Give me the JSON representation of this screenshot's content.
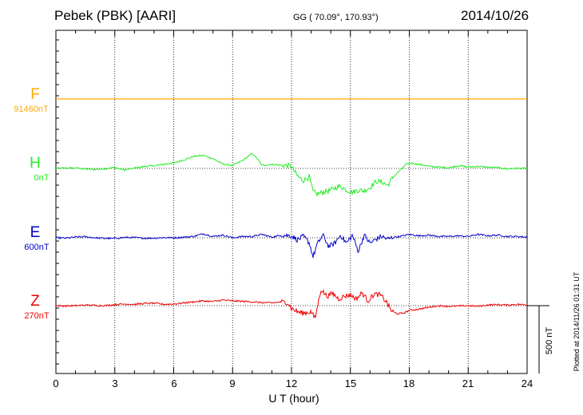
{
  "chart_data": {
    "type": "line",
    "station": "Pebek (PBK)  [AARI]",
    "coords": "GG ( 70.09°, 170.93°)",
    "date": "2014/10/26",
    "xlabel": "U T (hour)",
    "xlim": [
      0,
      24
    ],
    "xticks": [
      "0",
      "3",
      "6",
      "9",
      "12",
      "15",
      "18",
      "21",
      "24"
    ],
    "scale_label": "500 nT",
    "scale_nT": 500,
    "plotted_note": "Plotted at 2014/11/26 01:31  UT",
    "series": [
      {
        "name": "F",
        "baseline": "91460nT",
        "color": "#ffaa00",
        "x": [
          0,
          24
        ],
        "y": [
          0,
          0
        ]
      },
      {
        "name": "H",
        "baseline": "0nT",
        "color": "#22ee22",
        "x": [
          0,
          0.5,
          1,
          1.5,
          2,
          2.5,
          3,
          3.5,
          4,
          4.5,
          5,
          5.5,
          6,
          6.5,
          7,
          7.5,
          8,
          8.5,
          9,
          9.5,
          10,
          10.25,
          10.5,
          11,
          11.5,
          11.8,
          12,
          12.3,
          12.6,
          12.9,
          13.1,
          13.3,
          13.6,
          13.9,
          14.2,
          14.5,
          14.8,
          15.1,
          15.4,
          15.7,
          16,
          16.3,
          16.6,
          16.9,
          17.2,
          17.5,
          17.8,
          18,
          18.5,
          19,
          19.5,
          20,
          20.5,
          21,
          21.5,
          22,
          22.5,
          23,
          23.5,
          24
        ],
        "y": [
          0,
          2,
          3,
          -5,
          -8,
          -2,
          6,
          -12,
          2,
          14,
          20,
          30,
          40,
          62,
          88,
          96,
          72,
          32,
          22,
          58,
          110,
          72,
          22,
          30,
          22,
          22,
          12,
          -55,
          -90,
          -60,
          -170,
          -190,
          -175,
          -165,
          -145,
          -130,
          -160,
          -175,
          -160,
          -165,
          -140,
          -95,
          -100,
          -125,
          -60,
          -20,
          25,
          40,
          30,
          15,
          10,
          5,
          20,
          10,
          15,
          8,
          5,
          -4,
          0,
          0
        ]
      },
      {
        "name": "E",
        "baseline": "600nT",
        "color": "#0000cc",
        "x": [
          0,
          0.5,
          1,
          1.5,
          2,
          2.5,
          3,
          3.5,
          4,
          4.5,
          5,
          5.5,
          6,
          6.5,
          7,
          7.5,
          8,
          8.5,
          9,
          9.5,
          10,
          10.5,
          11,
          11.5,
          12,
          12.3,
          12.6,
          12.9,
          13.1,
          13.3,
          13.6,
          13.9,
          14.2,
          14.5,
          14.8,
          15.1,
          15.4,
          15.7,
          16,
          16.3,
          16.6,
          16.9,
          17.2,
          17.5,
          18,
          18.5,
          19,
          19.5,
          20,
          20.5,
          21,
          21.5,
          22,
          22.5,
          23,
          23.5,
          24
        ],
        "y": [
          0,
          -2,
          5,
          8,
          0,
          -4,
          -4,
          3,
          2,
          -3,
          -2,
          2,
          0,
          5,
          10,
          30,
          10,
          20,
          0,
          10,
          10,
          25,
          5,
          20,
          15,
          -15,
          10,
          -35,
          -140,
          -50,
          20,
          -65,
          -40,
          20,
          -40,
          20,
          -100,
          20,
          -40,
          -10,
          10,
          -10,
          5,
          10,
          25,
          15,
          20,
          10,
          10,
          15,
          10,
          25,
          15,
          20,
          10,
          10,
          5
        ]
      },
      {
        "name": "Z",
        "baseline": "270nT",
        "color": "#ee0000",
        "x": [
          0,
          0.5,
          1,
          1.5,
          2,
          2.5,
          3,
          3.5,
          4,
          4.5,
          5,
          5.5,
          6,
          6.5,
          7,
          7.5,
          8,
          8.5,
          9,
          9.5,
          10,
          10.5,
          11,
          11.5,
          11.8,
          12,
          12.3,
          12.6,
          12.8,
          13,
          13.2,
          13.5,
          13.8,
          14.1,
          14.4,
          14.7,
          15,
          15.3,
          15.6,
          15.9,
          16.2,
          16.5,
          16.8,
          17.1,
          17.4,
          17.7,
          18,
          18.5,
          19,
          19.5,
          20,
          20.5,
          21,
          21.5,
          22,
          22.5,
          23,
          23.5,
          24
        ],
        "y": [
          0,
          -2,
          0,
          4,
          2,
          0,
          8,
          12,
          10,
          16,
          18,
          10,
          12,
          20,
          28,
          35,
          30,
          42,
          35,
          32,
          28,
          22,
          20,
          28,
          22,
          -20,
          -45,
          -55,
          -50,
          -45,
          -95,
          120,
          70,
          90,
          50,
          70,
          80,
          50,
          95,
          35,
          85,
          80,
          35,
          -40,
          -60,
          -55,
          -35,
          -25,
          -12,
          0,
          -5,
          -3,
          0,
          -5,
          5,
          8,
          4,
          10,
          5
        ]
      }
    ]
  }
}
